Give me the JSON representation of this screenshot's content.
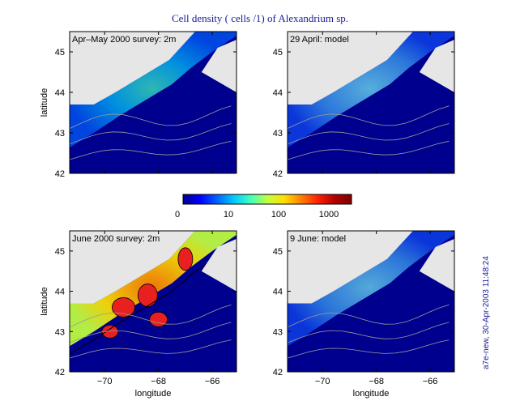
{
  "chart_data": {
    "type": "heatmap",
    "title": "Cell density ( cells /1) of Alexandrium sp.",
    "stamp": "a7e-new, 30-Apr-2003 11:48:24",
    "colorbar": {
      "ticks": [
        "0",
        "10",
        "100",
        "1000"
      ],
      "colors": [
        "#00008f",
        "#0000ff",
        "#0060ff",
        "#00c8ff",
        "#40ffbf",
        "#c0ff40",
        "#ffe000",
        "#ff8000",
        "#ff2000",
        "#b00000",
        "#800000"
      ]
    },
    "panels": [
      {
        "label": "Apr–May 2000 survey: 2m",
        "xlim": [
          -71.3,
          -65.1
        ],
        "ylim": [
          42,
          45.5
        ],
        "xticks": [
          "-70",
          "-68",
          "-66"
        ],
        "yticks": [
          "42",
          "43",
          "44",
          "45"
        ],
        "xlabel": "",
        "ylabel": "latitude",
        "density_level": 0.45
      },
      {
        "label": "29 April: model",
        "xlim": [
          -71.3,
          -65.1
        ],
        "ylim": [
          42,
          45.5
        ],
        "xticks": [
          "-70",
          "-68",
          "-66"
        ],
        "yticks": [
          "42",
          "43",
          "44",
          "45"
        ],
        "xlabel": "",
        "ylabel": "",
        "density_level": 0.35
      },
      {
        "label": "June 2000 survey: 2m",
        "xlim": [
          -71.3,
          -65.1
        ],
        "ylim": [
          42,
          45.5
        ],
        "xticks": [
          "-70",
          "-68",
          "-66"
        ],
        "yticks": [
          "42",
          "43",
          "44",
          "45"
        ],
        "xlabel": "longitude",
        "ylabel": "latitude",
        "density_level": 0.85
      },
      {
        "label": "9 June: model",
        "xlim": [
          -71.3,
          -65.1
        ],
        "ylim": [
          42,
          45.5
        ],
        "xticks": [
          "-70",
          "-68",
          "-66"
        ],
        "yticks": [
          "42",
          "43",
          "44",
          "45"
        ],
        "xlabel": "longitude",
        "ylabel": "",
        "density_level": 0.32
      }
    ]
  }
}
